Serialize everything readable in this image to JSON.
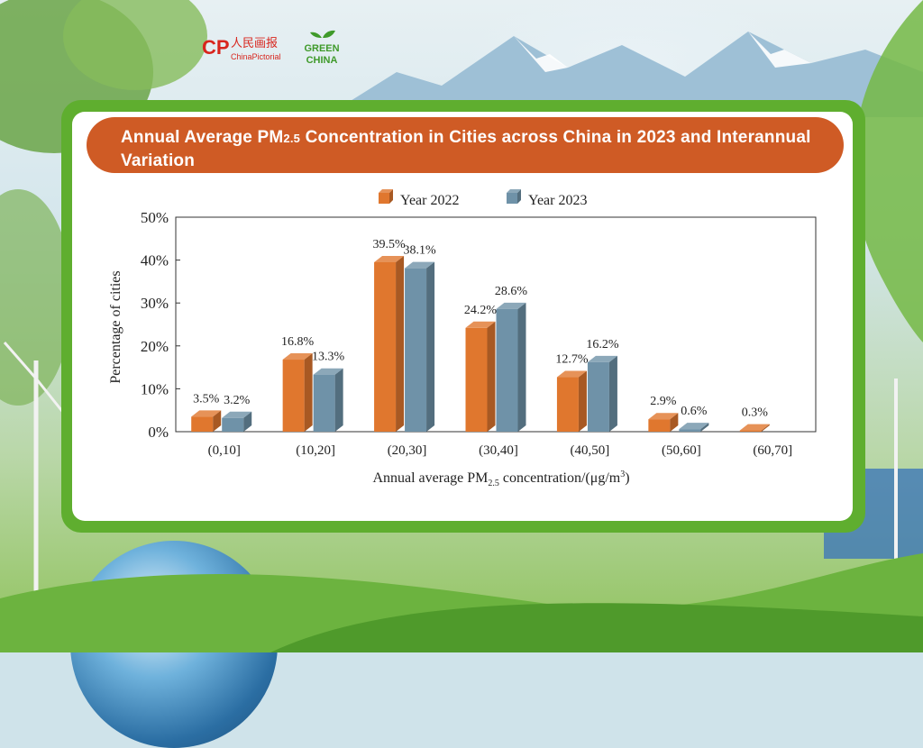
{
  "header": {
    "title_part1": "Annual Average PM",
    "title_sub": "2.5",
    "title_part2": " Concentration in Cities across China in 2023 and Interannual Variation"
  },
  "logos": {
    "chinapictorial_cn": "人民画报",
    "chinapictorial_en": "ChinaPictorial",
    "green_china_line1": "GREEN",
    "green_china_line2": "CHINA"
  },
  "colors": {
    "orange": "#cf5b25",
    "green": "#5fae2f",
    "year2022": "#e0772e",
    "year2023": "#6f92a8"
  },
  "chart_data": {
    "type": "bar",
    "categories": [
      "(0,10]",
      "(10,20]",
      "(20,30]",
      "(30,40]",
      "(40,50]",
      "(50,60]",
      "(60,70]"
    ],
    "series": [
      {
        "name": "Year 2022",
        "values": [
          3.5,
          16.8,
          39.5,
          24.2,
          12.7,
          2.9,
          0.3
        ],
        "labels": [
          "3.5%",
          "16.8%",
          "39.5%",
          "24.2%",
          "12.7%",
          "2.9%",
          "0.3%"
        ]
      },
      {
        "name": "Year 2023",
        "values": [
          3.2,
          13.3,
          38.1,
          28.6,
          16.2,
          0.6,
          null
        ],
        "labels": [
          "3.2%",
          "13.3%",
          "38.1%",
          "28.6%",
          "16.2%",
          "0.6%",
          ""
        ]
      }
    ],
    "ylabel": "Percentage of cities",
    "xlabel_part1": "Annual average PM",
    "xlabel_sub": "2.5",
    "xlabel_part2": " concentration/(μg/m",
    "xlabel_sup": "3",
    "xlabel_part3": ")",
    "ylim": [
      0,
      50
    ],
    "yticks": [
      "0%",
      "10%",
      "20%",
      "30%",
      "40%",
      "50%"
    ],
    "legend_position": "top-center",
    "bar_style": "3d"
  }
}
